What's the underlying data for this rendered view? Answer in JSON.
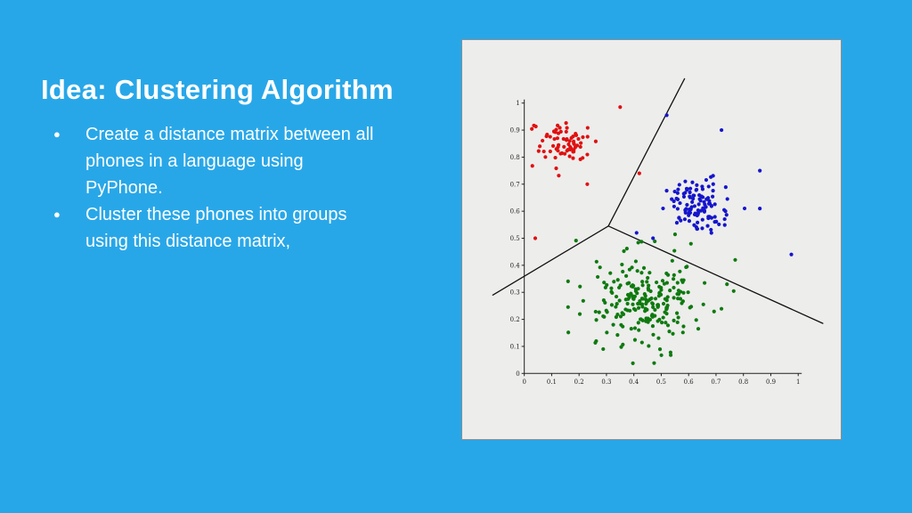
{
  "slide": {
    "title": "Idea: Clustering Algorithm",
    "background_color": "#28A7E8",
    "text_color": "#FFFFFF",
    "bullets": [
      {
        "marker": "●",
        "text": "Create a distance matrix between all\nphones in a language using\nPyPhone."
      },
      {
        "marker": "●",
        "text": "Cluster these phones into groups\nusing this distance matrix,"
      }
    ]
  },
  "figure": {
    "panel_color": "#EDEDEC",
    "border_color": "#8F8F8F"
  },
  "chart_data": {
    "type": "scatter",
    "title": "",
    "xlabel": "",
    "ylabel": "",
    "xlim": [
      0,
      1
    ],
    "ylim": [
      0,
      1
    ],
    "grid": false,
    "legend": false,
    "x_ticks": [
      "0",
      "0.1",
      "0.2",
      "0.3",
      "0.4",
      "0.5",
      "0.6",
      "0.7",
      "0.8",
      "0.9",
      "1"
    ],
    "y_ticks": [
      "0",
      "0.1",
      "0.2",
      "0.3",
      "0.4",
      "0.5",
      "0.6",
      "0.7",
      "0.8",
      "0.9",
      "1"
    ],
    "description": "Three point clusters (red, blue, green) separated by Voronoi-style boundary lines meeting near (0.31, 0.55)",
    "clusters": [
      {
        "name": "cluster-red",
        "color": "#E01010",
        "count": 72,
        "center": [
          0.14,
          0.85
        ],
        "std": [
          0.045,
          0.045
        ],
        "outliers": [
          [
            0.35,
            0.985
          ],
          [
            0.42,
            0.74
          ],
          [
            0.04,
            0.5
          ],
          [
            0.23,
            0.7
          ]
        ]
      },
      {
        "name": "cluster-blue",
        "color": "#1515CC",
        "count": 115,
        "center": [
          0.64,
          0.62
        ],
        "std": [
          0.055,
          0.05
        ],
        "outliers": [
          [
            0.86,
            0.61
          ],
          [
            0.975,
            0.44
          ],
          [
            0.52,
            0.955
          ],
          [
            0.72,
            0.9
          ],
          [
            0.41,
            0.52
          ],
          [
            0.47,
            0.5
          ],
          [
            0.86,
            0.75
          ]
        ]
      },
      {
        "name": "cluster-green",
        "color": "#0E7A0E",
        "count": 230,
        "center": [
          0.45,
          0.27
        ],
        "std": [
          0.1,
          0.085
        ],
        "outliers": [
          [
            0.77,
            0.42
          ],
          [
            0.74,
            0.33
          ]
        ]
      }
    ],
    "boundaries": {
      "center": [
        0.307,
        0.545
      ],
      "ends": [
        [
          0.585,
          1.09
        ],
        [
          -0.115,
          0.29
        ],
        [
          1.09,
          0.185
        ]
      ]
    },
    "axis_color": "#222222",
    "boundary_color": "#111111"
  }
}
